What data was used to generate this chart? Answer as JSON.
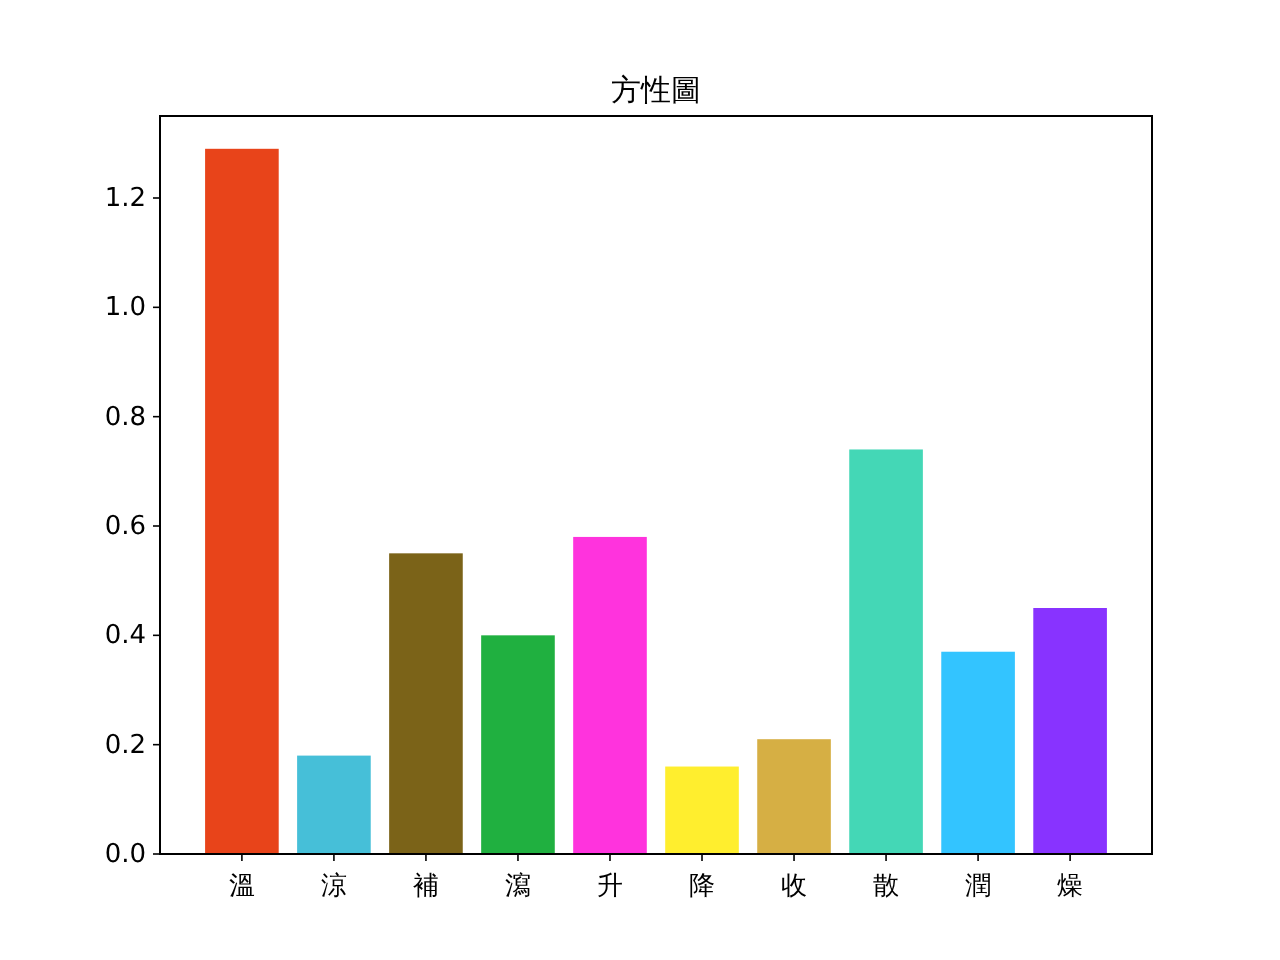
{
  "chart_data": {
    "type": "bar",
    "title": "方性圖",
    "categories": [
      "溫",
      "涼",
      "補",
      "瀉",
      "升",
      "降",
      "收",
      "散",
      "潤",
      "燥"
    ],
    "values": [
      1.29,
      0.18,
      0.55,
      0.4,
      0.58,
      0.16,
      0.21,
      0.74,
      0.37,
      0.45
    ],
    "colors": [
      "#e8441a",
      "#46bfd8",
      "#7b6318",
      "#20b040",
      "#ff33dd",
      "#ffee2e",
      "#d6af44",
      "#44d7b6",
      "#33c4ff",
      "#8833ff"
    ],
    "ylim": [
      0,
      1.35
    ],
    "yticks": [
      {
        "value": 0,
        "label": "0.0"
      },
      0.2,
      0.4,
      0.6,
      0.8,
      {
        "value": 1,
        "label": "1.0"
      },
      1.2
    ]
  }
}
